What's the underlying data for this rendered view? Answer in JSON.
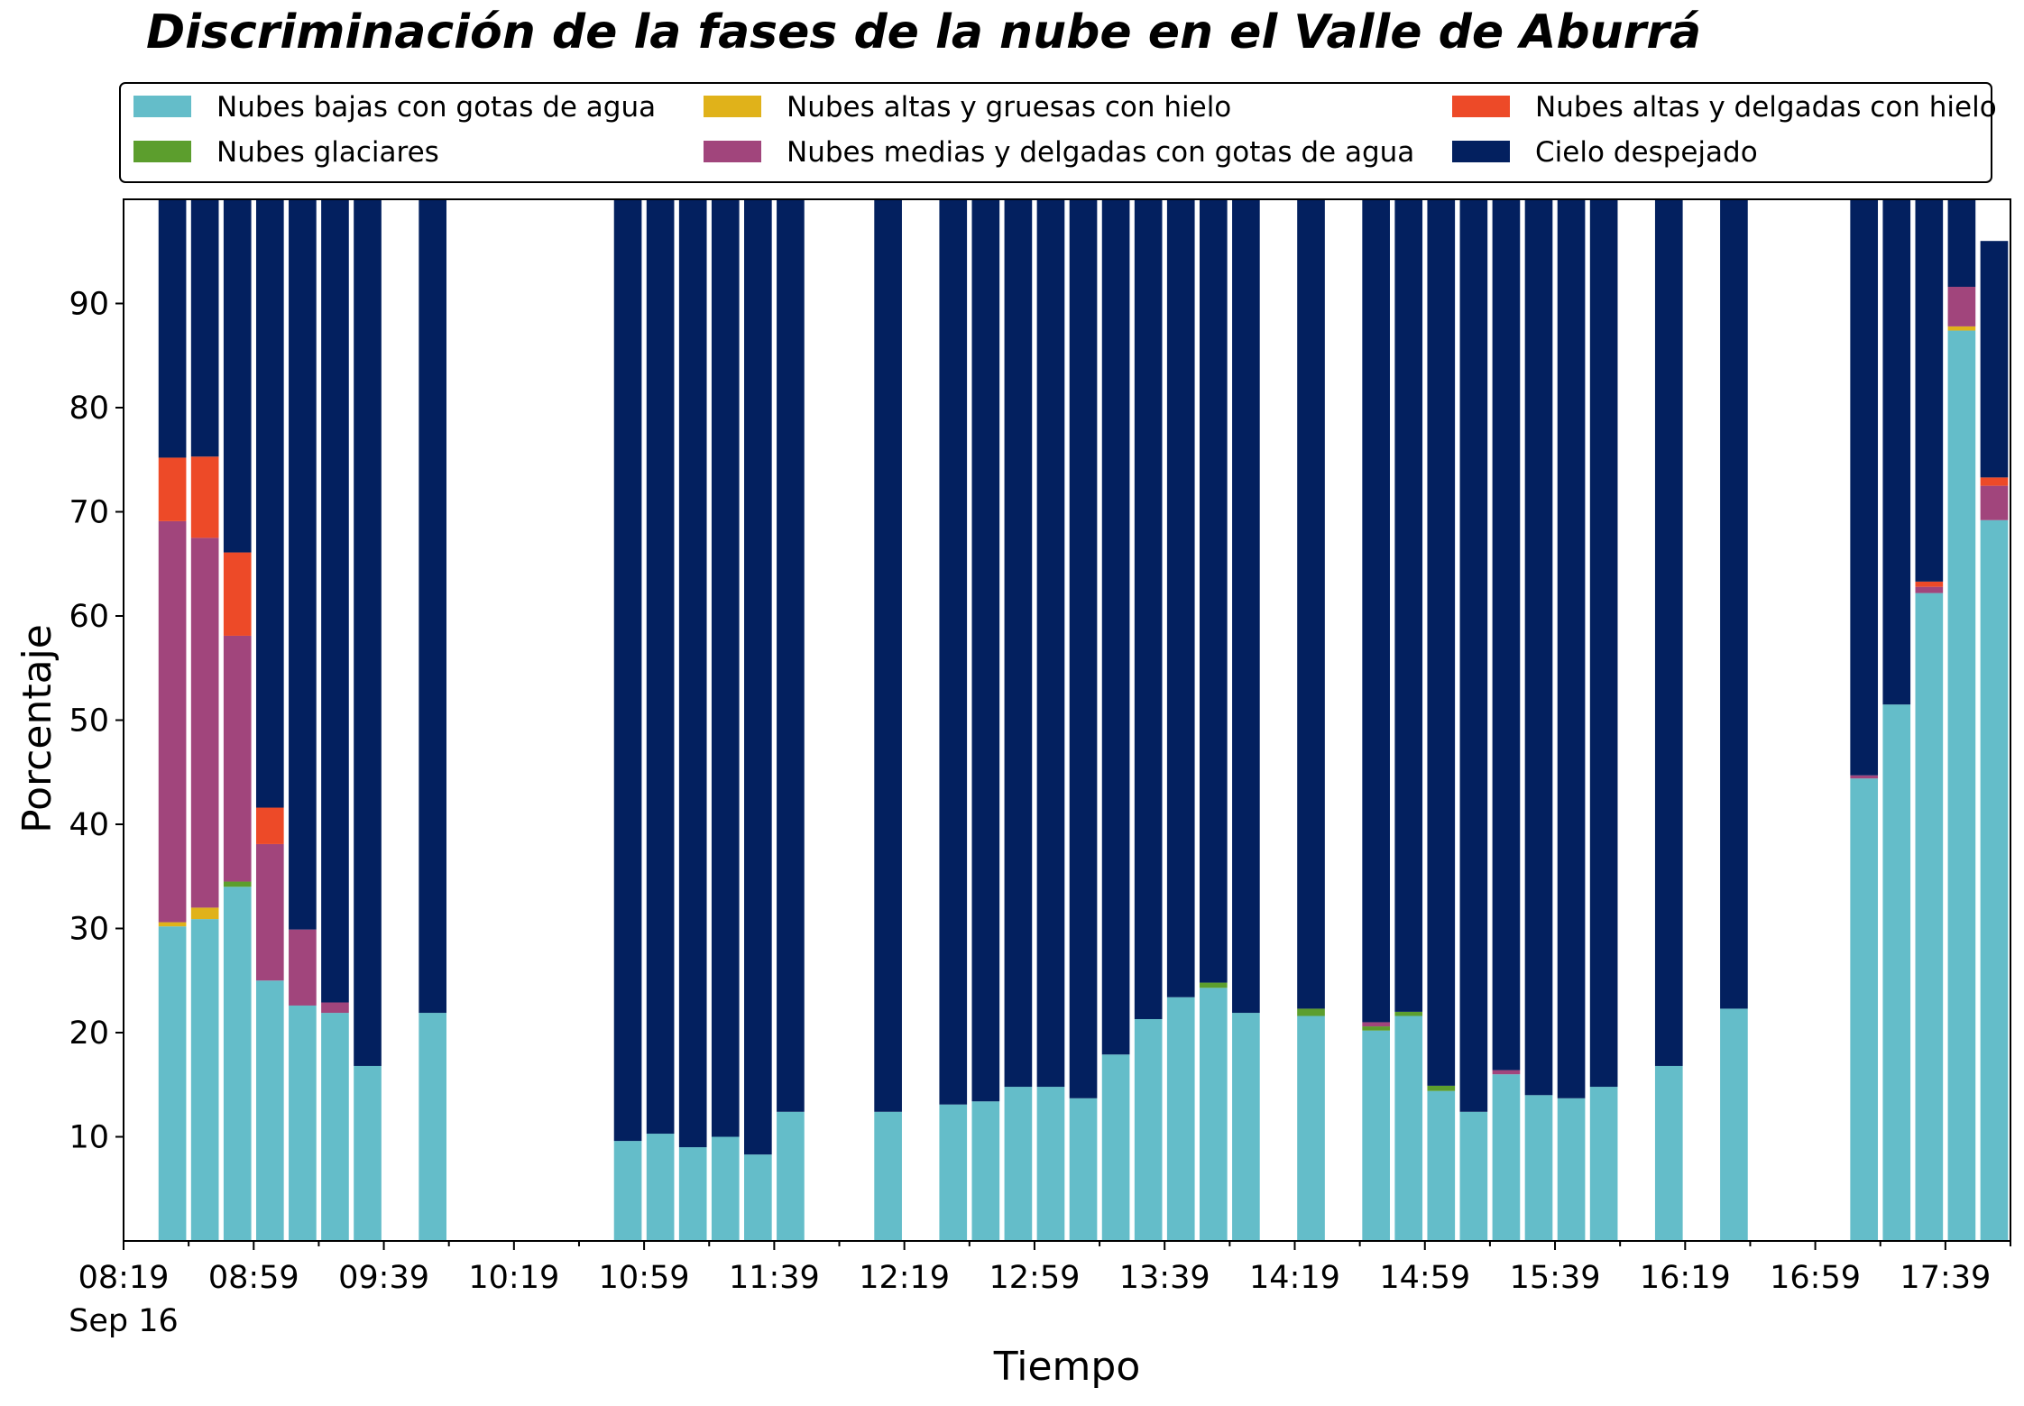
{
  "chart_data": {
    "type": "bar",
    "stacked": true,
    "title": "Discriminación de la fases de la nube en el Valle de Aburrá",
    "xlabel": "Tiempo",
    "ylabel": "Porcentaje",
    "ylim": [
      0,
      100
    ],
    "yticks": [
      10,
      20,
      30,
      40,
      50,
      60,
      70,
      80,
      90
    ],
    "x_tick_labels": [
      "08:19",
      "08:59",
      "09:39",
      "10:19",
      "10:59",
      "11:39",
      "12:19",
      "12:59",
      "13:39",
      "14:19",
      "14:59",
      "15:39",
      "16:19",
      "16:59",
      "17:39"
    ],
    "x_date_label": "Sep 16",
    "x_range": [
      "08:19",
      "17:59"
    ],
    "bar_width_minutes": 8.5,
    "grid": false,
    "legend": {
      "placement": "top",
      "columns": 3
    },
    "categories": [
      "08:34",
      "08:44",
      "08:54",
      "09:04",
      "09:14",
      "09:24",
      "09:34",
      "09:54",
      "10:54",
      "11:04",
      "11:14",
      "11:24",
      "11:34",
      "11:44",
      "12:14",
      "12:34",
      "12:44",
      "12:54",
      "13:04",
      "13:14",
      "13:24",
      "13:34",
      "13:44",
      "13:54",
      "14:04",
      "14:24",
      "14:44",
      "14:54",
      "15:04",
      "15:14",
      "15:24",
      "15:34",
      "15:44",
      "15:54",
      "16:14",
      "16:34",
      "17:14",
      "17:24",
      "17:34",
      "17:44",
      "17:54"
    ],
    "series": [
      {
        "name": "Nubes bajas con gotas de agua",
        "color": "#64bdc9",
        "values": [
          30.2,
          30.9,
          34.0,
          25.0,
          22.6,
          21.9,
          16.8,
          21.9,
          9.6,
          10.3,
          9.0,
          10.0,
          8.3,
          12.4,
          12.4,
          13.1,
          13.4,
          14.8,
          14.8,
          13.7,
          17.9,
          21.3,
          23.4,
          24.3,
          21.9,
          21.6,
          20.2,
          21.6,
          14.4,
          12.4,
          16.0,
          14.0,
          13.7,
          14.8,
          16.8,
          22.3,
          44.4,
          51.5,
          62.2,
          87.4,
          69.2
        ]
      },
      {
        "name": "Nubes glaciares",
        "color": "#5c9e2d",
        "values": [
          0,
          0,
          0.5,
          0,
          0,
          0,
          0,
          0,
          0,
          0,
          0,
          0,
          0,
          0,
          0,
          0,
          0,
          0,
          0,
          0,
          0,
          0,
          0,
          0.5,
          0,
          0.7,
          0.4,
          0.4,
          0.5,
          0,
          0,
          0,
          0,
          0,
          0,
          0,
          0,
          0,
          0,
          0,
          0
        ]
      },
      {
        "name": "Nubes altas y gruesas con hielo",
        "color": "#e0b21a",
        "values": [
          0.4,
          1.1,
          0,
          0,
          0,
          0,
          0,
          0,
          0,
          0,
          0,
          0,
          0,
          0,
          0,
          0,
          0,
          0,
          0,
          0,
          0,
          0,
          0,
          0,
          0,
          0,
          0,
          0,
          0,
          0,
          0,
          0,
          0,
          0,
          0,
          0,
          0,
          0,
          0,
          0.4,
          0
        ]
      },
      {
        "name": "Nubes medias y delgadas con gotas de agua",
        "color": "#a1457c",
        "values": [
          38.5,
          35.5,
          23.6,
          13.1,
          7.3,
          1.0,
          0,
          0,
          0,
          0,
          0,
          0,
          0,
          0,
          0,
          0,
          0,
          0,
          0,
          0,
          0,
          0,
          0,
          0,
          0,
          0,
          0.4,
          0,
          0,
          0,
          0.4,
          0,
          0,
          0,
          0,
          0,
          0.3,
          0,
          0.6,
          3.8,
          3.3
        ]
      },
      {
        "name": "Nubes altas y delgadas con hielo",
        "color": "#ed4a28",
        "values": [
          6.1,
          7.8,
          8.0,
          3.5,
          0,
          0,
          0,
          0,
          0,
          0,
          0,
          0,
          0,
          0,
          0,
          0,
          0,
          0,
          0,
          0,
          0,
          0,
          0,
          0,
          0,
          0,
          0,
          0,
          0,
          0,
          0,
          0,
          0,
          0,
          0,
          0,
          0,
          0,
          0.5,
          0,
          0.8
        ]
      },
      {
        "name": "Cielo despejado",
        "color": "#03205f",
        "values": [
          24.8,
          24.7,
          33.9,
          58.4,
          70.1,
          77.1,
          83.2,
          78.1,
          90.4,
          89.7,
          91.0,
          90.0,
          91.7,
          87.6,
          87.6,
          86.9,
          86.6,
          85.2,
          85.2,
          86.3,
          82.1,
          78.7,
          76.6,
          75.2,
          78.1,
          77.7,
          79.0,
          78.0,
          85.1,
          87.6,
          83.6,
          86.0,
          86.3,
          85.2,
          83.2,
          77.7,
          55.3,
          48.5,
          36.7,
          8.4,
          22.7
        ]
      }
    ]
  }
}
